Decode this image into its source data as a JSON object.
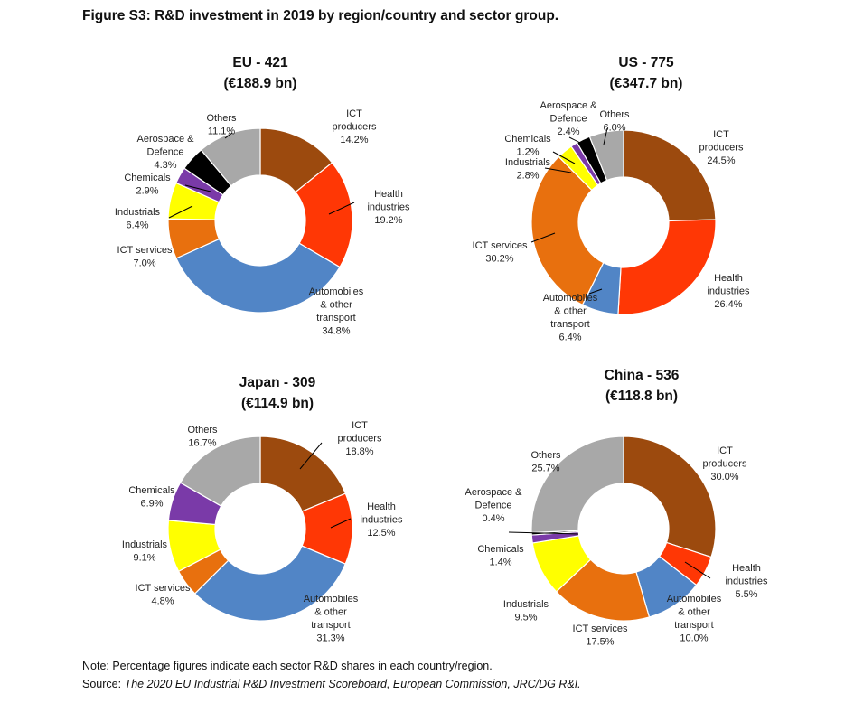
{
  "figure_title": "Figure S3: R&D investment in 2019 by region/country and sector group.",
  "note": "Note: Percentage figures indicate each sector R&D shares in each country/region.",
  "source": {
    "prefix": "Source: ",
    "reference": "The 2020 EU Industrial R&D Investment Scoreboard, European Commission, JRC/DG R&I."
  },
  "colors": {
    "ICT producers": "#9c4a0e",
    "Health industries": "#ff3705",
    "Automobiles & other transport": "#5185c6",
    "ICT services": "#e8700e",
    "Industrials": "#ffff00",
    "Chemicals": "#7a3aa8",
    "Aerospace & Defence": "#000000",
    "Others": "#a8a8a8"
  },
  "chart_data": [
    {
      "type": "pie",
      "title": [
        "EU - 421",
        "(€188.9 bn)"
      ],
      "slices": [
        {
          "label": "ICT producers",
          "value": 14.2,
          "text": [
            "ICT",
            "producers",
            "14.2%"
          ]
        },
        {
          "label": "Health industries",
          "value": 19.2,
          "text": [
            "Health",
            "industries",
            "19.2%"
          ]
        },
        {
          "label": "Automobiles & other transport",
          "value": 34.8,
          "text": [
            "Automobiles",
            "& other",
            "transport",
            "34.8%"
          ]
        },
        {
          "label": "ICT services",
          "value": 7.0,
          "text": [
            "ICT services",
            "7.0%"
          ]
        },
        {
          "label": "Industrials",
          "value": 6.4,
          "text": [
            "Industrials",
            "6.4%"
          ]
        },
        {
          "label": "Chemicals",
          "value": 2.9,
          "text": [
            "Chemicals",
            "2.9%"
          ]
        },
        {
          "label": "Aerospace & Defence",
          "value": 4.3,
          "text": [
            "Aerospace &",
            "Defence",
            "4.3%"
          ]
        },
        {
          "label": "Others",
          "value": 11.1,
          "text": [
            "Others",
            "11.1%"
          ]
        }
      ]
    },
    {
      "type": "pie",
      "title": [
        "US  - 775",
        "(€347.7 bn)"
      ],
      "slices": [
        {
          "label": "ICT producers",
          "value": 24.5,
          "text": [
            "ICT",
            "producers",
            "24.5%"
          ]
        },
        {
          "label": "Health industries",
          "value": 26.4,
          "text": [
            "Health",
            "industries",
            "26.4%"
          ]
        },
        {
          "label": "Automobiles & other transport",
          "value": 6.4,
          "text": [
            "Automobiles",
            "& other",
            "transport",
            "6.4%"
          ]
        },
        {
          "label": "ICT services",
          "value": 30.2,
          "text": [
            "ICT services",
            "30.2%"
          ]
        },
        {
          "label": "Industrials",
          "value": 2.8,
          "text": [
            "Industrials",
            "2.8%"
          ]
        },
        {
          "label": "Chemicals",
          "value": 1.2,
          "text": [
            "Chemicals",
            "1.2%"
          ]
        },
        {
          "label": "Aerospace & Defence",
          "value": 2.4,
          "text": [
            "Aerospace &",
            "Defence",
            "2.4%"
          ]
        },
        {
          "label": "Others",
          "value": 6.0,
          "text": [
            "Others",
            "6.0%"
          ]
        }
      ]
    },
    {
      "type": "pie",
      "title": [
        "Japan - 309",
        "(€114.9 bn)"
      ],
      "slices": [
        {
          "label": "ICT producers",
          "value": 18.8,
          "text": [
            "ICT",
            "producers",
            "18.8%"
          ]
        },
        {
          "label": "Health industries",
          "value": 12.5,
          "text": [
            "Health",
            "industries",
            "12.5%"
          ]
        },
        {
          "label": "Automobiles & other transport",
          "value": 31.3,
          "text": [
            "Automobiles",
            "& other",
            "transport",
            "31.3%"
          ]
        },
        {
          "label": "ICT services",
          "value": 4.8,
          "text": [
            "ICT services",
            "4.8%"
          ]
        },
        {
          "label": "Industrials",
          "value": 9.1,
          "text": [
            "Industrials",
            "9.1%"
          ]
        },
        {
          "label": "Chemicals",
          "value": 6.9,
          "text": [
            "Chemicals",
            "6.9%"
          ]
        },
        {
          "label": "Others",
          "value": 16.7,
          "text": [
            "Others",
            "16.7%"
          ]
        }
      ]
    },
    {
      "type": "pie",
      "title": [
        "China  - 536",
        "(€118.8 bn)"
      ],
      "slices": [
        {
          "label": "ICT producers",
          "value": 30.0,
          "text": [
            "ICT",
            "producers",
            "30.0%"
          ]
        },
        {
          "label": "Health industries",
          "value": 5.5,
          "text": [
            "Health",
            "industries",
            "5.5%"
          ]
        },
        {
          "label": "Automobiles & other transport",
          "value": 10.0,
          "text": [
            "Automobiles",
            "& other",
            "transport",
            "10.0%"
          ]
        },
        {
          "label": "ICT services",
          "value": 17.5,
          "text": [
            "ICT services",
            "17.5%"
          ]
        },
        {
          "label": "Industrials",
          "value": 9.5,
          "text": [
            "Industrials",
            "9.5%"
          ]
        },
        {
          "label": "Chemicals",
          "value": 1.4,
          "text": [
            "Chemicals",
            "1.4%"
          ]
        },
        {
          "label": "Aerospace & Defence",
          "value": 0.4,
          "text": [
            "Aerospace &",
            "Defence",
            "0.4%"
          ]
        },
        {
          "label": "Others",
          "value": 25.7,
          "text": [
            "Others",
            "25.7%"
          ]
        }
      ]
    }
  ]
}
